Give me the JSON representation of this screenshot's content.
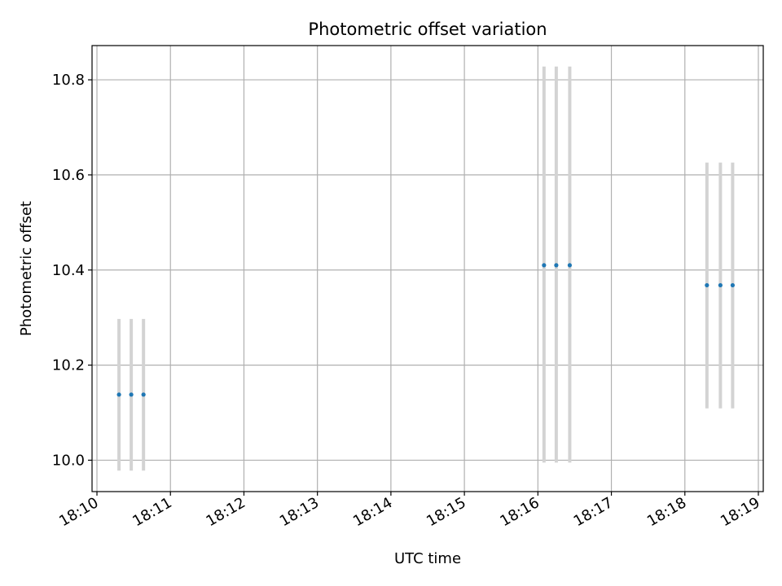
{
  "chart_data": {
    "type": "scatter",
    "title": "Photometric offset variation",
    "xlabel": "UTC time",
    "ylabel": "Photometric offset",
    "x_unit": "time (UTC, HH:MM)",
    "xlim": [
      "18:09:56",
      "18:19:04"
    ],
    "ylim": [
      9.934,
      10.872
    ],
    "grid": true,
    "x_ticks": [
      "18:10",
      "18:11",
      "18:12",
      "18:13",
      "18:14",
      "18:15",
      "18:16",
      "18:17",
      "18:18",
      "18:19"
    ],
    "y_ticks": [
      10.0,
      10.2,
      10.4,
      10.6,
      10.8
    ],
    "y_tick_labels": [
      "10.0",
      "10.2",
      "10.4",
      "10.6",
      "10.8"
    ],
    "marker_color": "#1f77b4",
    "errorbar_color": "#d3d3d3",
    "series": [
      {
        "points": [
          {
            "x": "18:10:18",
            "y": 10.138,
            "y_low": 9.978,
            "y_high": 10.297
          },
          {
            "x": "18:10:28",
            "y": 10.138,
            "y_low": 9.978,
            "y_high": 10.297
          },
          {
            "x": "18:10:38",
            "y": 10.138,
            "y_low": 9.978,
            "y_high": 10.297
          },
          {
            "x": "18:16:05",
            "y": 10.41,
            "y_low": 9.995,
            "y_high": 10.828
          },
          {
            "x": "18:16:15",
            "y": 10.41,
            "y_low": 9.995,
            "y_high": 10.828
          },
          {
            "x": "18:16:26",
            "y": 10.41,
            "y_low": 9.995,
            "y_high": 10.828
          },
          {
            "x": "18:18:18",
            "y": 10.368,
            "y_low": 10.109,
            "y_high": 10.626
          },
          {
            "x": "18:18:29",
            "y": 10.368,
            "y_low": 10.109,
            "y_high": 10.626
          },
          {
            "x": "18:18:39",
            "y": 10.368,
            "y_low": 10.109,
            "y_high": 10.626
          }
        ]
      }
    ]
  }
}
